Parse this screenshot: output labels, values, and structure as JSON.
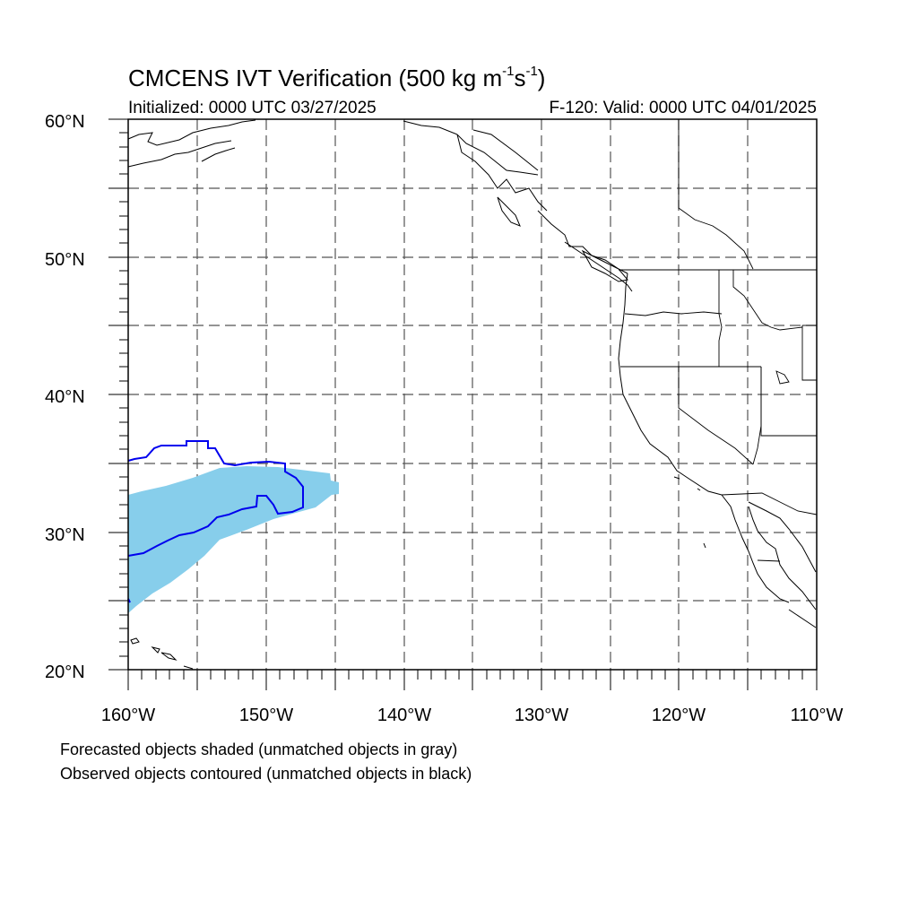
{
  "title": {
    "main": "CMCENS IVT Verification (500 kg m",
    "sup1": "-1",
    "mid": "s",
    "sup2": "-1",
    "end": ")"
  },
  "subtitle_left": "Initialized: 0000 UTC 03/27/2025",
  "subtitle_right": "F-120: Valid: 0000 UTC 04/01/2025",
  "notes": [
    "Forecasted objects shaded (unmatched objects in gray)",
    "Observed objects contoured (unmatched objects in black)"
  ],
  "map": {
    "lon_labels": [
      "160°W",
      "150°W",
      "140°W",
      "130°W",
      "120°W",
      "110°W"
    ],
    "lat_labels": [
      "20°N",
      "30°N",
      "40°N",
      "50°N",
      "60°N"
    ],
    "lon_range": [
      -160,
      -110
    ],
    "lat_range": [
      20,
      60
    ],
    "grid_spacing_deg": 5,
    "colors": {
      "forecast_shade": "#87ceeb",
      "observed_contour": "#0000ee",
      "coast": "#000000",
      "grid": "#555555"
    }
  }
}
